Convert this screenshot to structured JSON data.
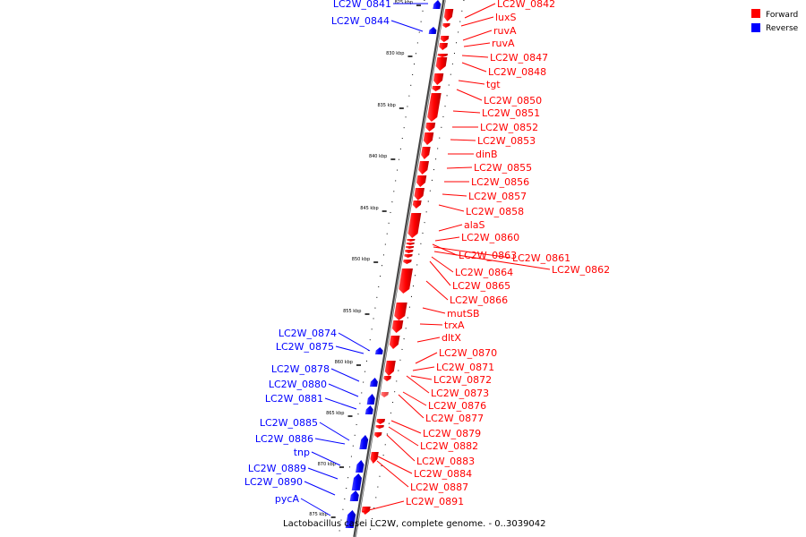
{
  "caption": "Lactobacillus casei LC2W, complete genome. - 0..3039042",
  "colors": {
    "forward": "#ff0000",
    "reverse": "#0000ff",
    "backbone": "#555555"
  },
  "legend": [
    {
      "name": "Forward",
      "color": "#ff0000"
    },
    {
      "name": "Reverse",
      "color": "#0000ff"
    }
  ],
  "ticks": [
    "825 kbp",
    "830 kbp",
    "835 kbp",
    "840 kbp",
    "845 kbp",
    "850 kbp",
    "855 kbp",
    "860 kbp",
    "865 kbp",
    "870 kbp",
    "875 kbp"
  ],
  "forward_genes": [
    "LC2W_0842",
    "luxS",
    "ruvA",
    "ruvA",
    "LC2W_0847",
    "LC2W_0848",
    "tgt",
    "LC2W_0850",
    "LC2W_0851",
    "LC2W_0852",
    "LC2W_0853",
    "dinB",
    "LC2W_0855",
    "LC2W_0856",
    "LC2W_0857",
    "LC2W_0858",
    "alaS",
    "LC2W_0860",
    "LC2W_0863",
    "LC2W_0861",
    "LC2W_0862",
    "LC2W_0864",
    "LC2W_0865",
    "LC2W_0866",
    "mutSB",
    "trxA",
    "dltX",
    "LC2W_0870",
    "LC2W_0871",
    "LC2W_0872",
    "LC2W_0873",
    "LC2W_0876",
    "LC2W_0877",
    "LC2W_0879",
    "LC2W_0882",
    "LC2W_0883",
    "LC2W_0884",
    "LC2W_0887",
    "LC2W_0891"
  ],
  "reverse_genes": [
    "LC2W_0841",
    "LC2W_0844",
    "LC2W_0874",
    "LC2W_0875",
    "LC2W_0878",
    "LC2W_0880",
    "LC2W_0881",
    "LC2W_0885",
    "LC2W_0886",
    "tnp",
    "LC2W_0889",
    "LC2W_0890",
    "pycA"
  ]
}
